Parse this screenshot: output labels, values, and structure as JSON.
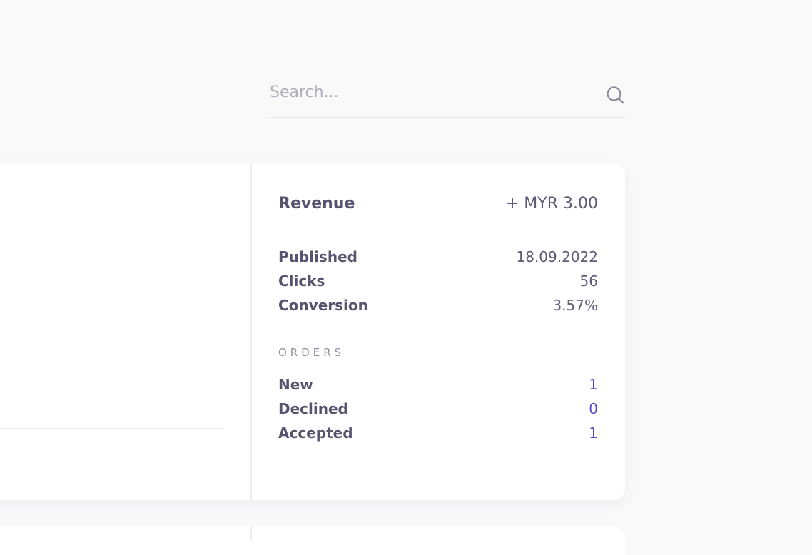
{
  "search": {
    "placeholder": "Search...",
    "icon": "search-icon"
  },
  "stats": {
    "revenue": {
      "label": "Revenue",
      "value": "+ MYR 3.00"
    },
    "metrics": [
      {
        "label": "Published",
        "value": "18.09.2022"
      },
      {
        "label": "Clicks",
        "value": "56"
      },
      {
        "label": "Conversion",
        "value": "3.57%"
      }
    ],
    "orders": {
      "title": "ORDERS",
      "items": [
        {
          "label": "New",
          "value": "1"
        },
        {
          "label": "Declined",
          "value": "0"
        },
        {
          "label": "Accepted",
          "value": "1"
        }
      ]
    }
  },
  "colors": {
    "background": "#f9f9fa",
    "card": "#ffffff",
    "text": "#575470",
    "accent": "#5b4bc4",
    "muted": "#8f8ca2"
  }
}
